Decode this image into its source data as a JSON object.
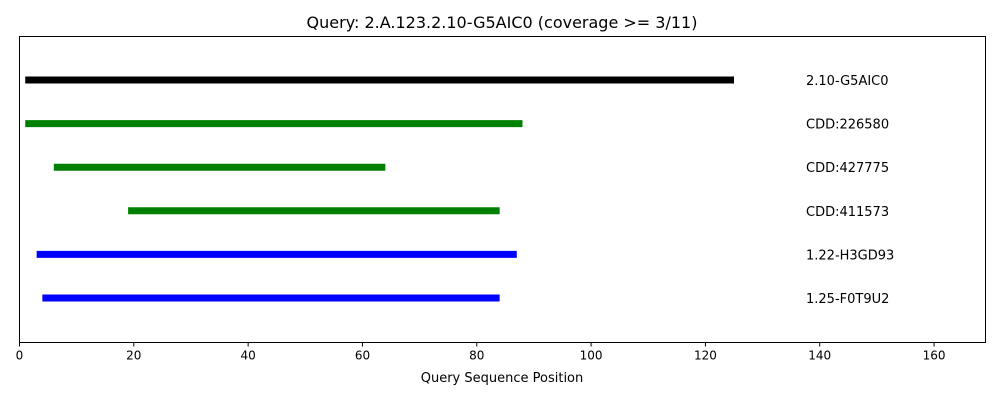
{
  "chart_data": {
    "type": "line",
    "title": "Query: 2.A.123.2.10-G5AIC0 (coverage >= 3/11)",
    "xlabel": "Query Sequence Position",
    "ylabel": "",
    "xlim": [
      0,
      169
    ],
    "xticks": [
      0,
      20,
      40,
      60,
      80,
      100,
      120,
      140,
      160
    ],
    "grid": false,
    "series": [
      {
        "name": "2.10-G5AIC0",
        "start": 1,
        "end": 125,
        "color": "#000000"
      },
      {
        "name": "CDD:226580",
        "start": 1,
        "end": 88,
        "color": "#008000"
      },
      {
        "name": "CDD:427775",
        "start": 6,
        "end": 64,
        "color": "#008000"
      },
      {
        "name": "CDD:411573",
        "start": 19,
        "end": 84,
        "color": "#008000"
      },
      {
        "name": "1.22-H3GD93",
        "start": 3,
        "end": 87,
        "color": "#0000ff"
      },
      {
        "name": "1.25-F0T9U2",
        "start": 4,
        "end": 84,
        "color": "#0000ff"
      }
    ]
  }
}
